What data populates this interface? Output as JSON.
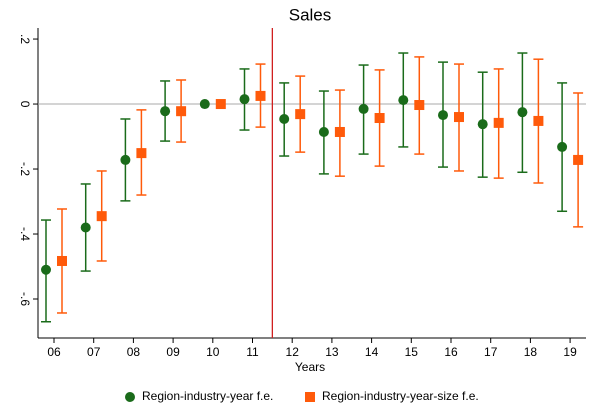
{
  "chart_data": {
    "type": "errorbar",
    "title": "Sales",
    "x_label": "Years",
    "categories": [
      "06",
      "07",
      "08",
      "09",
      "10",
      "11",
      "12",
      "13",
      "14",
      "15",
      "16",
      "17",
      "18",
      "19"
    ],
    "series": [
      {
        "name": "Region-industry-year f.e.",
        "color": "#1a6b1a",
        "marker": "circle",
        "values": [
          -0.51,
          -0.38,
          -0.172,
          -0.022,
          0,
          0.015,
          -0.046,
          -0.086,
          -0.015,
          0.012,
          -0.034,
          -0.062,
          -0.025,
          -0.132
        ],
        "lower": [
          -0.67,
          -0.514,
          -0.298,
          -0.114,
          null,
          -0.08,
          -0.16,
          -0.215,
          -0.154,
          -0.132,
          -0.194,
          -0.225,
          -0.21,
          -0.33
        ],
        "upper": [
          -0.357,
          -0.246,
          -0.046,
          0.071,
          null,
          0.108,
          0.065,
          0.04,
          0.12,
          0.157,
          0.129,
          0.098,
          0.157,
          0.065
        ]
      },
      {
        "name": "Region-industry-year-size f.e.",
        "color": "#ff5a0a",
        "marker": "square",
        "values": [
          -0.483,
          -0.345,
          -0.151,
          -0.022,
          0,
          0.025,
          -0.031,
          -0.086,
          -0.043,
          -0.003,
          -0.04,
          -0.058,
          -0.052,
          -0.172
        ],
        "lower": [
          -0.643,
          -0.483,
          -0.28,
          -0.117,
          null,
          -0.071,
          -0.148,
          -0.222,
          -0.191,
          -0.154,
          -0.206,
          -0.228,
          -0.243,
          -0.378
        ],
        "upper": [
          -0.323,
          -0.206,
          -0.018,
          0.074,
          null,
          0.123,
          0.086,
          0.043,
          0.105,
          0.145,
          0.123,
          0.108,
          0.138,
          0.034
        ]
      }
    ],
    "ylim": [
      -0.72,
      0.234
    ],
    "yticks": [
      {
        "value": 0.2,
        "label": ".2"
      },
      0,
      {
        "value": -0.2,
        "label": "-.2"
      },
      {
        "value": -0.4,
        "label": "-.4"
      },
      {
        "value": -0.6,
        "label": "-.6"
      }
    ],
    "hline": 0,
    "vline_after": "11",
    "legend": "bottom"
  }
}
